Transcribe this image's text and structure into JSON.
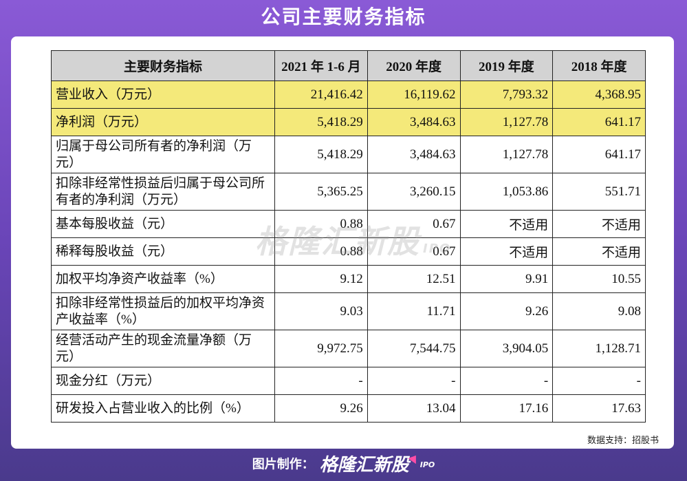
{
  "title": "公司主要财务指标",
  "table": {
    "headers": [
      "主要财务指标",
      "2021 年 1-6 月",
      "2020 年度",
      "2019 年度",
      "2018 年度"
    ],
    "rows": [
      {
        "label": "营业收入（万元）",
        "values": [
          "21,416.42",
          "16,119.62",
          "7,793.32",
          "4,368.95"
        ],
        "highlight": true,
        "lines": 1
      },
      {
        "label": "净利润（万元）",
        "values": [
          "5,418.29",
          "3,484.63",
          "1,127.78",
          "641.17"
        ],
        "highlight": true,
        "lines": 1
      },
      {
        "label": "归属于母公司所有者的净利润（万元）",
        "values": [
          "5,418.29",
          "3,484.63",
          "1,127.78",
          "641.17"
        ],
        "highlight": false,
        "lines": 2
      },
      {
        "label": "扣除非经常性损益后归属于母公司所有者的净利润（万元）",
        "values": [
          "5,365.25",
          "3,260.15",
          "1,053.86",
          "551.71"
        ],
        "highlight": false,
        "lines": 2
      },
      {
        "label": "基本每股收益（元）",
        "values": [
          "0.88",
          "0.67",
          "不适用",
          "不适用"
        ],
        "highlight": false,
        "lines": 1
      },
      {
        "label": "稀释每股收益（元）",
        "values": [
          "0.88",
          "0.67",
          "不适用",
          "不适用"
        ],
        "highlight": false,
        "lines": 1
      },
      {
        "label": "加权平均净资产收益率（%）",
        "values": [
          "9.12",
          "12.51",
          "9.91",
          "10.55"
        ],
        "highlight": false,
        "lines": 1
      },
      {
        "label": "扣除非经常性损益后的加权平均净资产收益率（%）",
        "values": [
          "9.03",
          "11.71",
          "9.26",
          "9.08"
        ],
        "highlight": false,
        "lines": 2
      },
      {
        "label": "经营活动产生的现金流量净额（万元）",
        "values": [
          "9,972.75",
          "7,544.75",
          "3,904.05",
          "1,128.71"
        ],
        "highlight": false,
        "lines": 2
      },
      {
        "label": "现金分红（万元）",
        "values": [
          "-",
          "-",
          "-",
          "-"
        ],
        "highlight": false,
        "lines": 1
      },
      {
        "label": "研发投入占营业收入的比例（%）",
        "values": [
          "9.26",
          "13.04",
          "17.16",
          "17.63"
        ],
        "highlight": false,
        "lines": 1
      }
    ]
  },
  "watermark": {
    "text": "格隆汇新股",
    "suffix": "IPO"
  },
  "source": "数据支持：招股书",
  "footer": {
    "credit": "图片制作：",
    "brand": "格隆汇新股",
    "brand_suffix": "IPO"
  },
  "colors": {
    "highlight": "#f4e97a",
    "header_bg": "#d3d3d3",
    "accent": "#ff4da6"
  }
}
